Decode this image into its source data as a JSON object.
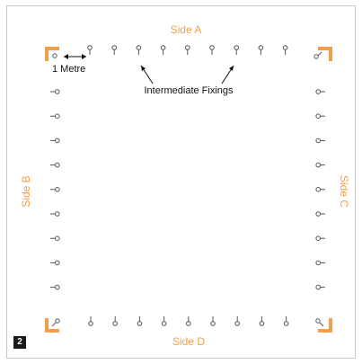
{
  "labels": {
    "side_a": "Side A",
    "side_b": "Side B",
    "side_c": "Side C",
    "side_d": "Side D",
    "spacing": "1 Metre",
    "intermediate": "Intermediate Fixings"
  },
  "figure_number": "2",
  "colors": {
    "accent": "#f0a04b",
    "fixing": "#555555",
    "frame": "#c8c8c8"
  },
  "corner_bracket_icon": "l-shaped-bracket",
  "fixing_icon": "screw-eye"
}
